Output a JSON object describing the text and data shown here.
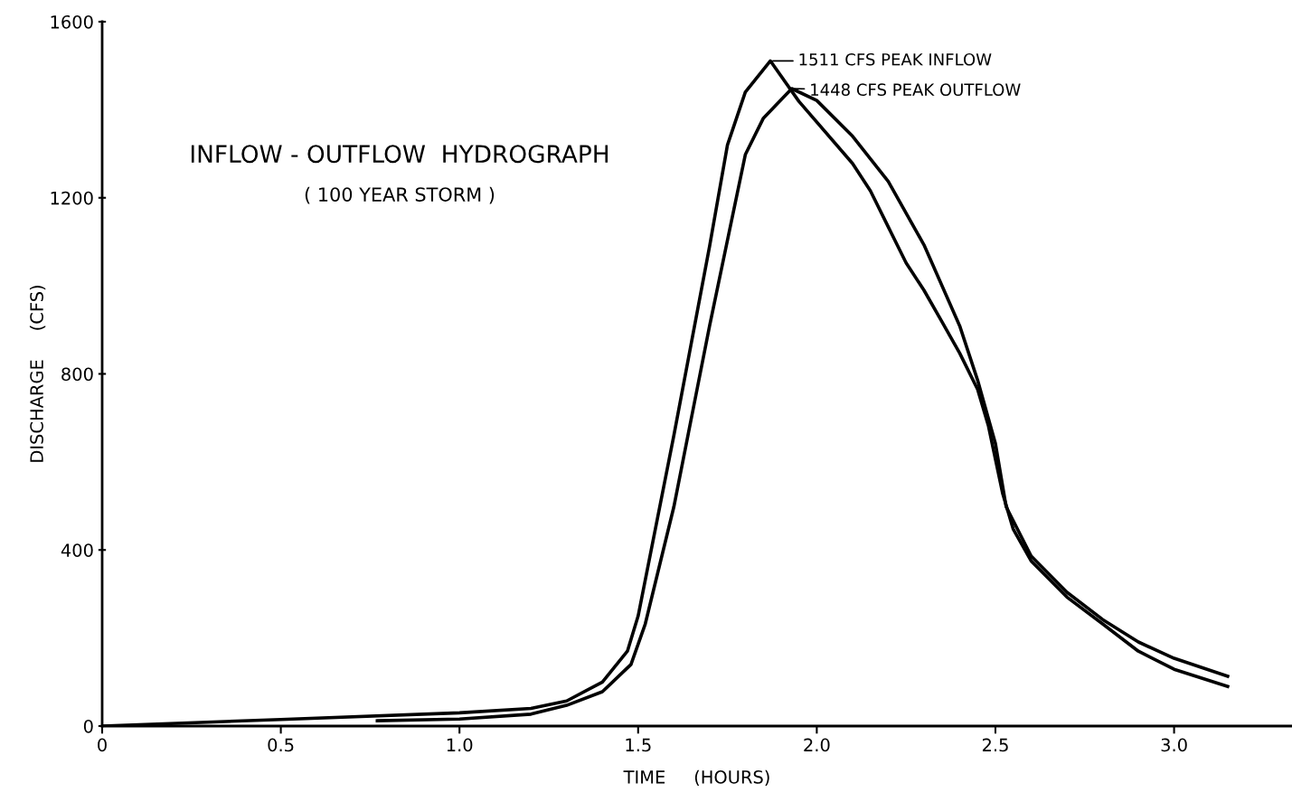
{
  "chart_data": {
    "type": "line",
    "title": "INFLOW - OUTFLOW  HYDROGRAPH",
    "subtitle": "( 100 YEAR STORM )",
    "xlabel": "TIME     (HOURS)",
    "ylabel": "DISCHARGE     (CFS)",
    "xlim": [
      0,
      3.33
    ],
    "ylim": [
      0,
      1600
    ],
    "xticks": [
      0,
      {
        "value": 0.5,
        "label": "0.5"
      },
      {
        "value": 1.0,
        "label": "1.0"
      },
      {
        "value": 1.5,
        "label": "1.5"
      },
      {
        "value": 2.0,
        "label": "2.0"
      },
      {
        "value": 2.5,
        "label": "2.5"
      },
      {
        "value": 3.0,
        "label": "3.0"
      }
    ],
    "yticks": [
      0,
      400,
      800,
      1200,
      1600
    ],
    "grid": false,
    "legend": false,
    "series": [
      {
        "color": "#000000",
        "x": [
          0,
          0.5,
          1.0,
          1.2,
          1.3,
          1.4,
          1.47,
          1.5,
          1.6,
          1.7,
          1.75,
          1.8,
          1.87,
          1.95,
          2.1,
          2.15,
          2.2,
          2.25,
          2.3,
          2.35,
          2.4,
          2.45,
          2.48,
          2.52,
          2.55,
          2.6,
          2.7,
          2.8,
          2.9,
          3.0,
          3.15
        ],
        "values": [
          0,
          15,
          30,
          40,
          57,
          100,
          170,
          250,
          660,
          1090,
          1320,
          1440,
          1511,
          1419,
          1278,
          1216,
          1134,
          1052,
          990,
          919,
          847,
          765,
          683,
          529,
          447,
          375,
          293,
          232,
          170,
          129,
          90
        ]
      },
      {
        "color": "#000000",
        "x": [
          0.77,
          1.0,
          1.2,
          1.3,
          1.4,
          1.48,
          1.52,
          1.6,
          1.7,
          1.8,
          1.85,
          1.93,
          2.0,
          2.1,
          2.2,
          2.3,
          2.4,
          2.45,
          2.5,
          2.53,
          2.6,
          2.7,
          2.8,
          2.9,
          3.0,
          3.15
        ],
        "values": [
          12,
          16,
          27,
          47,
          78,
          140,
          232,
          498,
          909,
          1298,
          1380,
          1448,
          1421,
          1340,
          1237,
          1093,
          909,
          786,
          642,
          498,
          386,
          304,
          242,
          191,
          154,
          113
        ]
      }
    ],
    "annotations": [
      {
        "text": "1511 CFS PEAK INFLOW",
        "x": 1.87,
        "y": 1511
      },
      {
        "text": "1448 CFS PEAK OUTFLOW",
        "x": 1.93,
        "y": 1448
      }
    ]
  }
}
